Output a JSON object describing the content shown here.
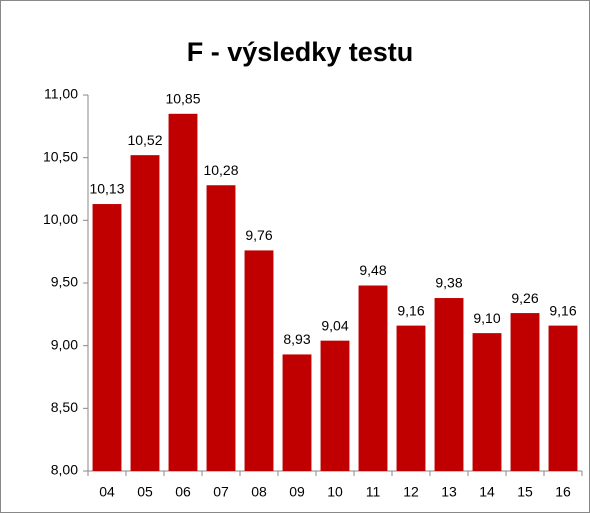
{
  "chart_data": {
    "type": "bar",
    "title": "F - výsledky testu",
    "categories": [
      "04",
      "05",
      "06",
      "07",
      "08",
      "09",
      "10",
      "11",
      "12",
      "13",
      "14",
      "15",
      "16"
    ],
    "values": [
      10.13,
      10.52,
      10.85,
      10.28,
      9.76,
      8.93,
      9.04,
      9.48,
      9.16,
      9.38,
      9.1,
      9.26,
      9.16
    ],
    "value_labels": [
      "10,13",
      "10,52",
      "10,85",
      "10,28",
      "9,76",
      "8,93",
      "9,04",
      "9,48",
      "9,16",
      "9,38",
      "9,10",
      "9,26",
      "9,16"
    ],
    "color": "#c00000",
    "ylim": [
      8,
      11
    ],
    "yticks": [
      {
        "value": 8,
        "label": "8,00"
      },
      {
        "value": 8.5,
        "label": "8,50"
      },
      {
        "value": 9,
        "label": "9,00"
      },
      {
        "value": 9.5,
        "label": "9,50"
      },
      {
        "value": 10,
        "label": "10,00"
      },
      {
        "value": 10.5,
        "label": "10,50"
      },
      {
        "value": 11,
        "label": "11,00"
      }
    ],
    "grid": false
  }
}
